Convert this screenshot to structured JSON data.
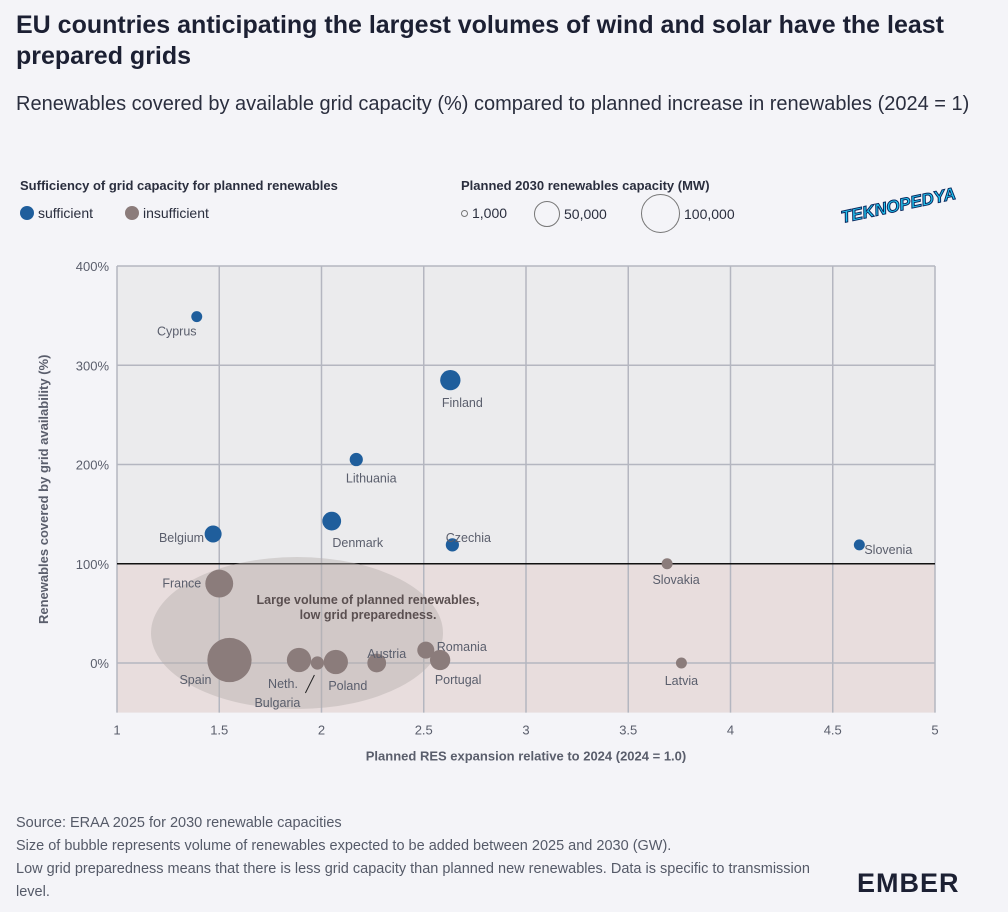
{
  "title": "EU countries anticipating the largest volumes of wind and solar have the least prepared grids",
  "subtitle": "Renewables covered by available grid capacity (%) compared to planned increase in renewables (2024 = 1)",
  "watermark": "TEKNOPEDYA",
  "legend": {
    "color_title": "Sufficiency of grid capacity for planned renewables",
    "color_items": [
      {
        "label": "sufficient",
        "color": "#1f5e9c"
      },
      {
        "label": "insufficient",
        "color": "#8b7c7b"
      }
    ],
    "size_title": "Planned 2030 renewables capacity (MW)",
    "size_items": [
      {
        "label": "1,000",
        "value": 1000
      },
      {
        "label": "50,000",
        "value": 50000
      },
      {
        "label": "100,000",
        "value": 100000
      }
    ]
  },
  "chart_data": {
    "type": "scatter",
    "xlabel": "Planned RES expansion relative to 2024 (2024 = 1.0)",
    "ylabel": "Renewables covered by grid availability (%)",
    "xlim": [
      1,
      5
    ],
    "ylim": [
      -50,
      400
    ],
    "xticks": [
      "1",
      "1.5",
      "2",
      "2.5",
      "3",
      "3.5",
      "4",
      "4.5",
      "5"
    ],
    "yticks": [
      "0%",
      "100%",
      "200%",
      "300%",
      "400%"
    ],
    "grid": true,
    "threshold_y": 100,
    "annotation": [
      "Large volume of planned renewables,",
      "low grid preparedness."
    ],
    "points": [
      {
        "label": "Cyprus",
        "x": 1.39,
        "y": 349,
        "size": 4000,
        "status": "sufficient"
      },
      {
        "label": "Finland",
        "x": 2.63,
        "y": 285,
        "size": 22000,
        "status": "sufficient"
      },
      {
        "label": "Lithuania",
        "x": 2.17,
        "y": 205,
        "size": 7000,
        "status": "sufficient"
      },
      {
        "label": "Denmark",
        "x": 2.05,
        "y": 143,
        "size": 18000,
        "status": "sufficient"
      },
      {
        "label": "Belgium",
        "x": 1.47,
        "y": 130,
        "size": 14000,
        "status": "sufficient"
      },
      {
        "label": "Czechia",
        "x": 2.64,
        "y": 119,
        "size": 7000,
        "status": "sufficient"
      },
      {
        "label": "Slovenia",
        "x": 4.63,
        "y": 119,
        "size": 4000,
        "status": "sufficient"
      },
      {
        "label": "Slovakia",
        "x": 3.69,
        "y": 100,
        "size": 4000,
        "status": "insufficient"
      },
      {
        "label": "France",
        "x": 1.5,
        "y": 80,
        "size": 47000,
        "status": "insufficient"
      },
      {
        "label": "Spain",
        "x": 1.55,
        "y": 3,
        "size": 134000,
        "status": "insufficient"
      },
      {
        "label": "Neth.",
        "x": 1.89,
        "y": 3,
        "size": 34000,
        "status": "insufficient"
      },
      {
        "label": "Bulgaria",
        "x": 1.98,
        "y": 0,
        "size": 7000,
        "status": "insufficient"
      },
      {
        "label": "Poland",
        "x": 2.07,
        "y": 1,
        "size": 34000,
        "status": "insufficient"
      },
      {
        "label": "Austria",
        "x": 2.27,
        "y": 0,
        "size": 18000,
        "status": "insufficient"
      },
      {
        "label": "Romania",
        "x": 2.51,
        "y": 13,
        "size": 14000,
        "status": "insufficient"
      },
      {
        "label": "Portugal",
        "x": 2.58,
        "y": 3,
        "size": 22000,
        "status": "insufficient"
      },
      {
        "label": "Latvia",
        "x": 3.76,
        "y": 0,
        "size": 4000,
        "status": "insufficient"
      }
    ]
  },
  "footer": [
    "Source: ERAA 2025 for 2030 renewable capacities",
    "Size of bubble represents volume of renewables expected to be added between 2025 and 2030 (GW).",
    "Low grid preparedness means that there is less grid capacity than planned new renewables. Data is specific to transmission level."
  ],
  "brand": "EMBER"
}
